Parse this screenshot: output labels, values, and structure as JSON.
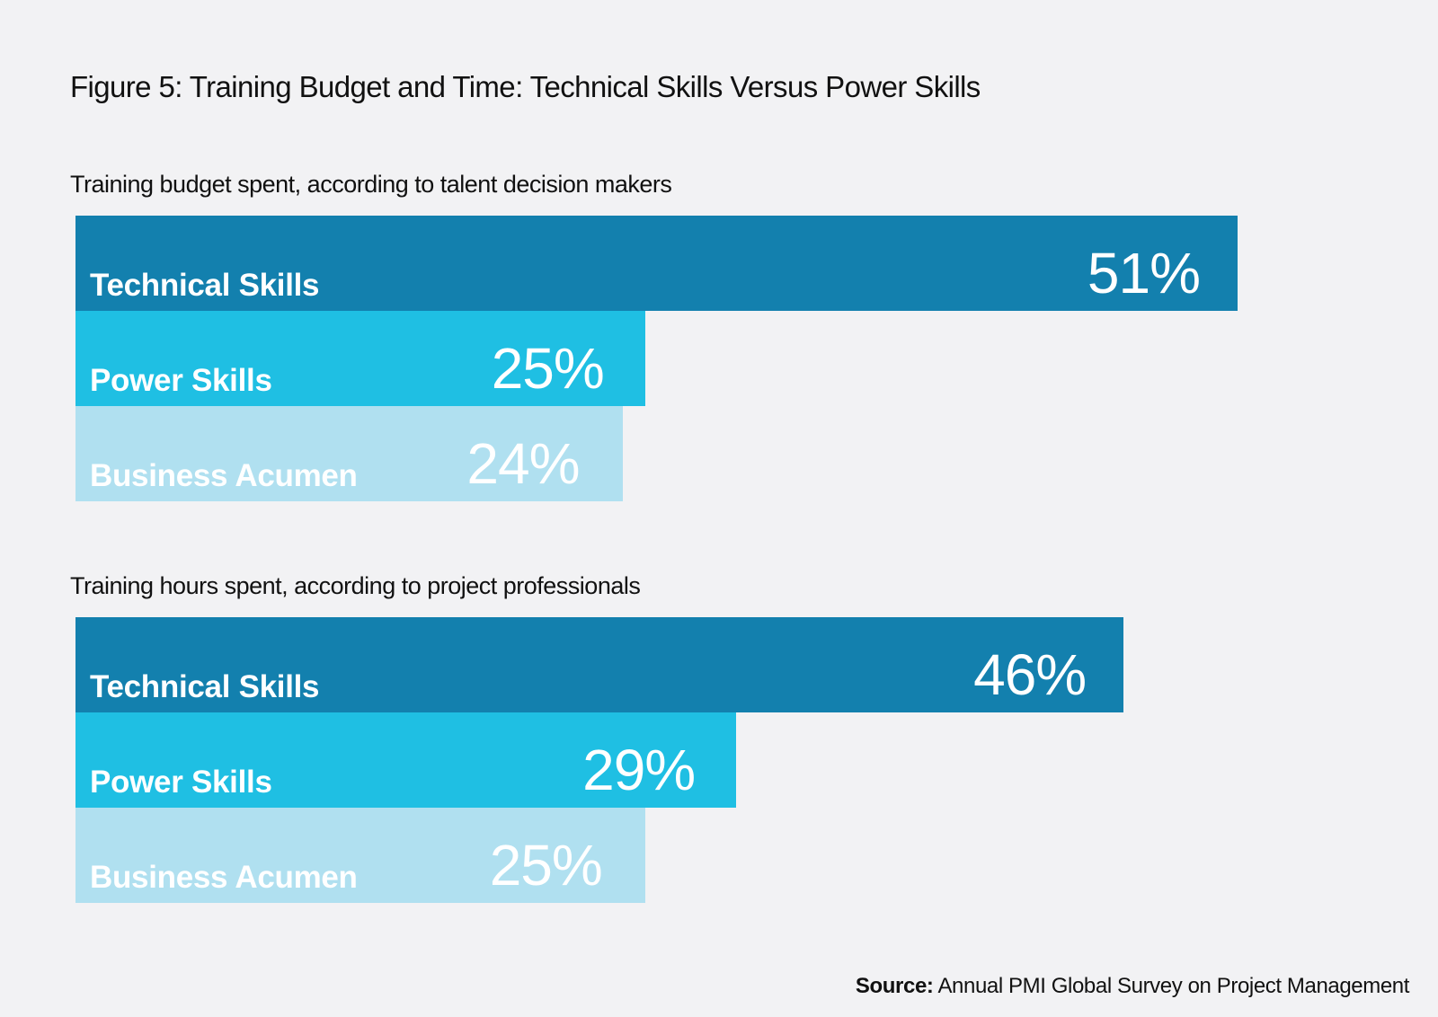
{
  "title": "Figure 5: Training Budget and Time: Technical Skills Versus Power Skills",
  "source": {
    "label": "Source:",
    "text": "Annual PMI Global Survey on Project Management"
  },
  "colors": {
    "technical": "#1380ae",
    "power": "#1fbfe3",
    "business": "#b0e0f0",
    "background": "#f2f2f4"
  },
  "chart_data": [
    {
      "type": "bar",
      "orientation": "horizontal",
      "title": "Training budget spent, according to talent decision makers",
      "categories": [
        "Technical Skills",
        "Power Skills",
        "Business Acumen"
      ],
      "values": [
        51,
        25,
        24
      ],
      "value_labels": [
        "51%",
        "25%",
        "24%"
      ],
      "unit": "%",
      "xlim": [
        0,
        60
      ],
      "grid": false,
      "legend": "none"
    },
    {
      "type": "bar",
      "orientation": "horizontal",
      "title": "Training hours spent, according to project professionals",
      "categories": [
        "Technical Skills",
        "Power Skills",
        "Business Acumen"
      ],
      "values": [
        46,
        29,
        25
      ],
      "value_labels": [
        "46%",
        "29%",
        "25%"
      ],
      "unit": "%",
      "xlim": [
        0,
        60
      ],
      "grid": false,
      "legend": "none"
    }
  ]
}
